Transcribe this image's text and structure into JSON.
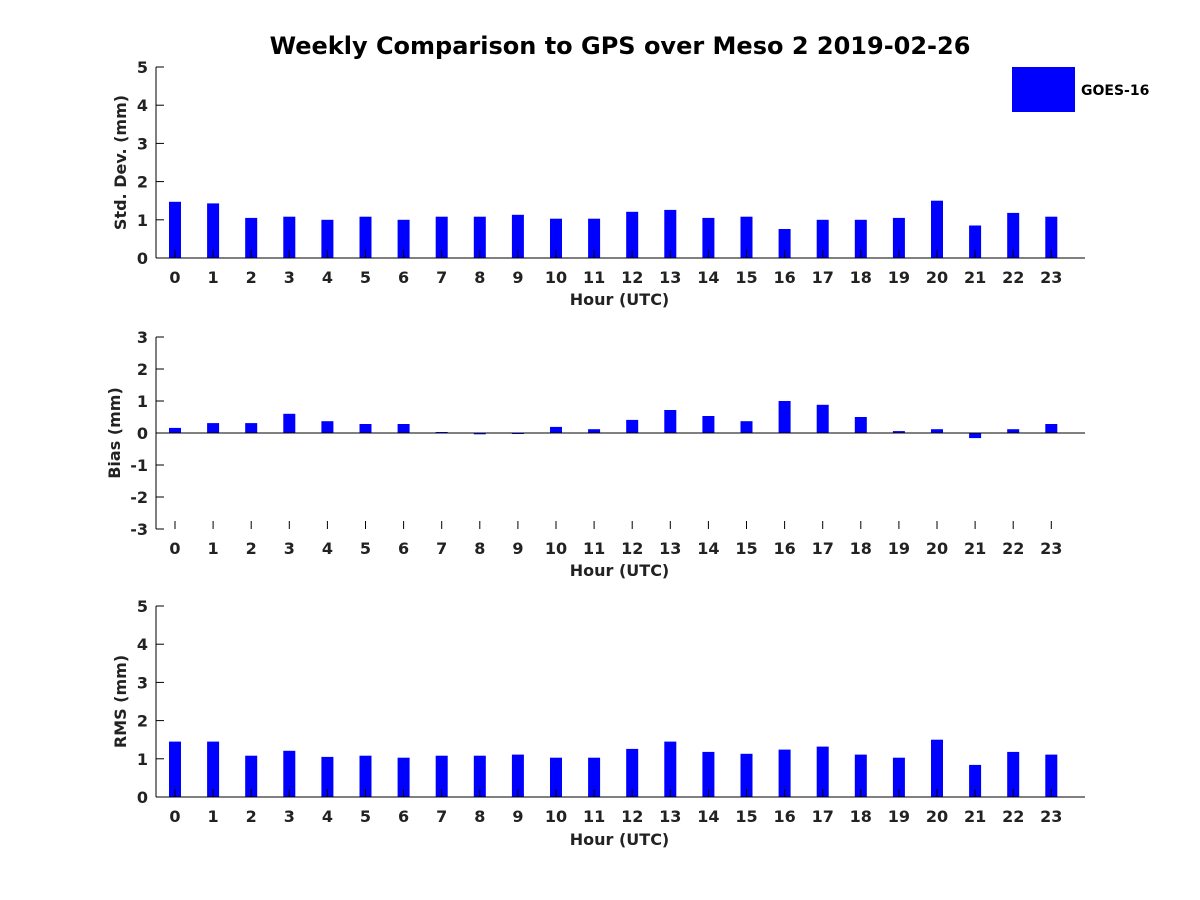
{
  "title": "Weekly Comparison to GPS over Meso 2 2019-02-26",
  "legend": {
    "label": "GOES-16",
    "color": "#0000ff"
  },
  "chart_data": [
    {
      "type": "bar",
      "name": "std-dev",
      "title": "Weekly Comparison to GPS over Meso 2 2019-02-26",
      "xlabel": "Hour (UTC)",
      "ylabel": "Std. Dev. (mm)",
      "ylim": [
        0,
        5
      ],
      "yticks": [
        "0",
        "1",
        "2",
        "3",
        "4",
        "5"
      ],
      "categories": [
        "0",
        "1",
        "2",
        "3",
        "4",
        "5",
        "6",
        "7",
        "8",
        "9",
        "10",
        "11",
        "12",
        "13",
        "14",
        "15",
        "16",
        "17",
        "18",
        "19",
        "20",
        "21",
        "22",
        "23"
      ],
      "series": [
        {
          "name": "GOES-16",
          "values": [
            1.47,
            1.43,
            1.05,
            1.08,
            1.0,
            1.08,
            1.0,
            1.08,
            1.08,
            1.13,
            1.03,
            1.03,
            1.21,
            1.26,
            1.05,
            1.08,
            0.76,
            1.0,
            1.0,
            1.05,
            1.5,
            0.85,
            1.18,
            1.08
          ]
        }
      ]
    },
    {
      "type": "bar",
      "name": "bias",
      "xlabel": "Hour (UTC)",
      "ylabel": "Bias (mm)",
      "ylim": [
        -3,
        3
      ],
      "yticks": [
        "-3",
        "-2",
        "-1",
        "0",
        "1",
        "2",
        "3"
      ],
      "categories": [
        "0",
        "1",
        "2",
        "3",
        "4",
        "5",
        "6",
        "7",
        "8",
        "9",
        "10",
        "11",
        "12",
        "13",
        "14",
        "15",
        "16",
        "17",
        "18",
        "19",
        "20",
        "21",
        "22",
        "23"
      ],
      "series": [
        {
          "name": "GOES-16",
          "values": [
            0.16,
            0.31,
            0.31,
            0.6,
            0.37,
            0.28,
            0.28,
            0.03,
            -0.04,
            -0.03,
            0.19,
            0.12,
            0.41,
            0.72,
            0.53,
            0.37,
            1.0,
            0.88,
            0.5,
            0.06,
            0.12,
            -0.16,
            0.12,
            0.28
          ]
        }
      ]
    },
    {
      "type": "bar",
      "name": "rms",
      "xlabel": "Hour (UTC)",
      "ylabel": "RMS (mm)",
      "ylim": [
        0,
        5
      ],
      "yticks": [
        "0",
        "1",
        "2",
        "3",
        "4",
        "5"
      ],
      "categories": [
        "0",
        "1",
        "2",
        "3",
        "4",
        "5",
        "6",
        "7",
        "8",
        "9",
        "10",
        "11",
        "12",
        "13",
        "14",
        "15",
        "16",
        "17",
        "18",
        "19",
        "20",
        "21",
        "22",
        "23"
      ],
      "series": [
        {
          "name": "GOES-16",
          "values": [
            1.45,
            1.45,
            1.08,
            1.21,
            1.05,
            1.08,
            1.03,
            1.08,
            1.08,
            1.11,
            1.03,
            1.03,
            1.26,
            1.45,
            1.18,
            1.13,
            1.24,
            1.32,
            1.11,
            1.03,
            1.5,
            0.84,
            1.18,
            1.11
          ]
        }
      ]
    }
  ]
}
